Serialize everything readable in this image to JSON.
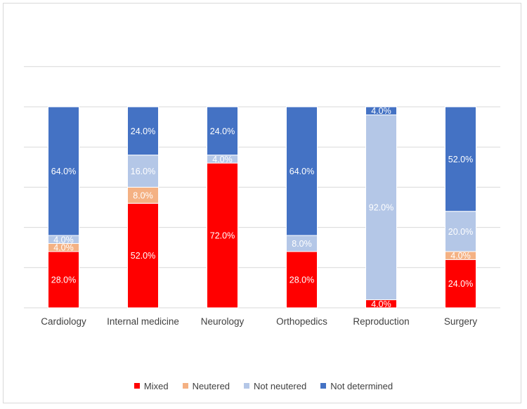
{
  "chart_data": {
    "type": "bar",
    "stacked": true,
    "categories": [
      "Cardiology",
      "Internal medicine",
      "Neurology",
      "Orthopedics",
      "Reproduction",
      "Surgery"
    ],
    "series": [
      {
        "name": "Mixed",
        "color": "#ff0000",
        "values": [
          28.0,
          52.0,
          72.0,
          28.0,
          4.0,
          24.0
        ],
        "labels": [
          "28.0%",
          "52.0%",
          "72.0%",
          "28.0%",
          "4.0%",
          "24.0%"
        ]
      },
      {
        "name": "Neutered",
        "color": "#f4b183",
        "values": [
          4.0,
          8.0,
          0,
          0,
          0,
          4.0
        ],
        "labels": [
          "4.0%",
          "8.0%",
          "",
          "",
          "",
          "4.0%"
        ]
      },
      {
        "name": "Not neutered",
        "color": "#b4c7e7",
        "values": [
          4.0,
          16.0,
          4.0,
          8.0,
          92.0,
          20.0
        ],
        "labels": [
          "4.0%",
          "16.0%",
          "4.0%",
          "8.0%",
          "92.0%",
          "20.0%"
        ]
      },
      {
        "name": "Not determined",
        "color": "#4472c4",
        "values": [
          64.0,
          24.0,
          24.0,
          64.0,
          4.0,
          52.0
        ],
        "labels": [
          "64.0%",
          "24.0%",
          "24.0%",
          "64.0%",
          "4.0%",
          "52.0%"
        ]
      }
    ],
    "ylim": [
      0,
      100
    ],
    "grid": true,
    "title": "",
    "xlabel": "",
    "ylabel": "",
    "legend_position": "bottom"
  }
}
